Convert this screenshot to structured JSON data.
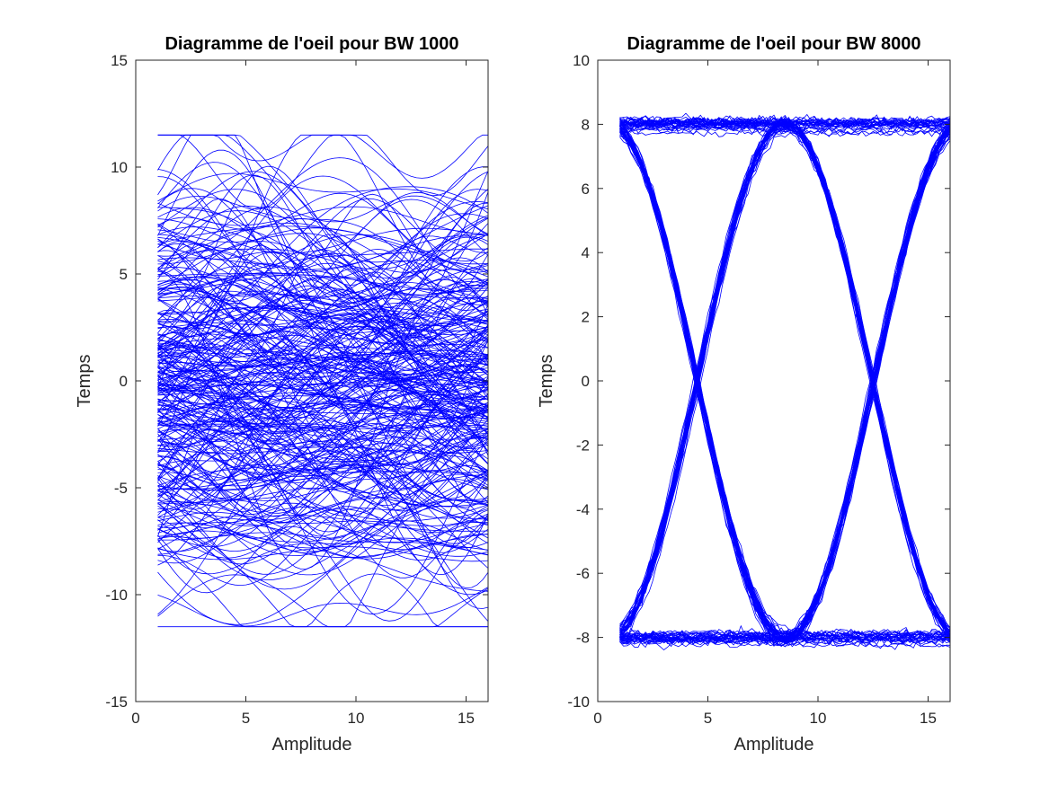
{
  "chart_data": [
    {
      "type": "line",
      "title": "Diagramme de l'oeil pour BW 1000",
      "xlabel": "Amplitude",
      "ylabel": "Temps",
      "xlim": [
        0,
        16
      ],
      "ylim": [
        -15,
        15
      ],
      "xticks": [
        0,
        5,
        10,
        15
      ],
      "yticks": [
        -15,
        -10,
        -5,
        0,
        5,
        10,
        15
      ],
      "x_range": [
        1,
        16
      ],
      "series_color": "#0000ff",
      "traces": {
        "count": 300,
        "y_spread": 11.5,
        "shape": "noisy-overlapping"
      },
      "grid": false,
      "legend": "none"
    },
    {
      "type": "line",
      "title": "Diagramme de l'oeil pour BW 8000",
      "xlabel": "Amplitude",
      "ylabel": "Temps",
      "xlim": [
        0,
        16
      ],
      "ylim": [
        -10,
        10
      ],
      "xticks": [
        0,
        5,
        10,
        15
      ],
      "yticks": [
        -10,
        -8,
        -6,
        -4,
        -2,
        0,
        2,
        4,
        6,
        8,
        10
      ],
      "x_range": [
        1,
        16
      ],
      "series_color": "#0000ff",
      "traces": {
        "count": 120,
        "levels": [
          -8,
          8
        ],
        "crossings": [
          4.5,
          12.5
        ],
        "shape": "eye"
      },
      "grid": false,
      "legend": "none"
    }
  ]
}
